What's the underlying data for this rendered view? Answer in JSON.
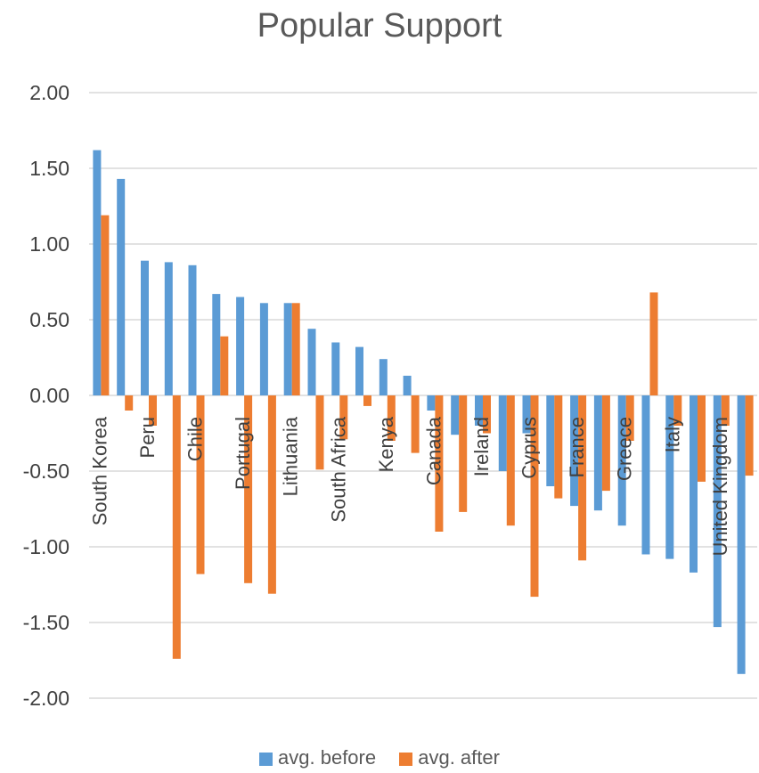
{
  "chart_data": {
    "type": "bar",
    "title": "Popular Support",
    "categories": [
      "South Korea",
      "",
      "Peru",
      "",
      "Chile",
      "",
      "Portugal",
      "",
      "Lithuania",
      "",
      "South Africa",
      "",
      "Kenya",
      "",
      "Canada",
      "",
      "Ireland",
      "",
      "Cyprus",
      "",
      "France",
      "",
      "Greece",
      "",
      "Italy",
      "",
      "United Kingdom",
      ""
    ],
    "series": [
      {
        "name": "avg. before",
        "color": "#5b9bd5",
        "values": [
          1.62,
          1.43,
          0.89,
          0.88,
          0.86,
          0.67,
          0.65,
          0.61,
          0.61,
          0.44,
          0.35,
          0.32,
          0.24,
          0.13,
          -0.1,
          -0.26,
          -0.2,
          -0.5,
          -0.25,
          -0.6,
          -0.73,
          -0.76,
          -0.86,
          -1.05,
          -1.08,
          -1.17,
          -1.53,
          -1.84
        ]
      },
      {
        "name": "avg. after",
        "color": "#ed7d31",
        "values": [
          1.19,
          -0.1,
          -0.2,
          -1.74,
          -1.18,
          0.39,
          -1.24,
          -1.31,
          0.61,
          -0.49,
          -0.29,
          -0.07,
          -0.3,
          -0.38,
          -0.9,
          -0.77,
          -0.25,
          -0.86,
          -1.33,
          -0.68,
          -1.09,
          -0.63,
          -0.3,
          0.68,
          -0.2,
          -0.57,
          -0.2,
          -0.53
        ]
      }
    ],
    "yticks": [
      "2.00",
      "1.50",
      "1.00",
      "0.50",
      "0.00",
      "-0.50",
      "-1.00",
      "-1.50",
      "-2.00"
    ],
    "ylim": [
      -2,
      2
    ],
    "grid": true,
    "legend_position": "bottom"
  }
}
